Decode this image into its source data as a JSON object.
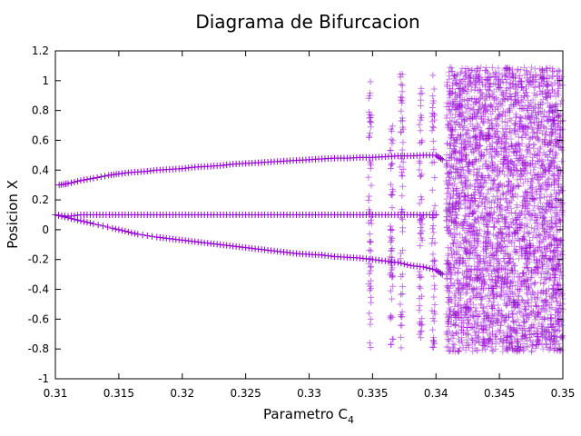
{
  "chart_data": {
    "type": "scatter",
    "title": "Diagrama de Bifurcacion",
    "xlabel": {
      "base": "Parametro C",
      "subscript": "4"
    },
    "ylabel": "Posicion X",
    "xlim": [
      0.31,
      0.35
    ],
    "ylim": [
      -1,
      1.2
    ],
    "xticks": [
      "0.31",
      "0.315",
      "0.32",
      "0.325",
      "0.33",
      "0.335",
      "0.34",
      "0.345",
      "0.35"
    ],
    "yticks": [
      "-1",
      "-0.8",
      "-0.6",
      "-0.4",
      "-0.2",
      "0",
      "0.2",
      "0.4",
      "0.6",
      "0.8",
      "1",
      "1.2"
    ],
    "marker": "+",
    "color": "#9400d3",
    "grid": false,
    "series": [
      {
        "branch": "upper",
        "points": [
          [
            0.3103,
            0.3
          ],
          [
            0.311,
            0.31
          ],
          [
            0.312,
            0.33
          ],
          [
            0.313,
            0.345
          ],
          [
            0.3142,
            0.365
          ],
          [
            0.315,
            0.375
          ],
          [
            0.316,
            0.385
          ],
          [
            0.317,
            0.39
          ],
          [
            0.318,
            0.4
          ],
          [
            0.319,
            0.405
          ],
          [
            0.32,
            0.41
          ],
          [
            0.321,
            0.42
          ],
          [
            0.322,
            0.425
          ],
          [
            0.323,
            0.43
          ],
          [
            0.324,
            0.44
          ],
          [
            0.325,
            0.445
          ],
          [
            0.326,
            0.45
          ],
          [
            0.327,
            0.455
          ],
          [
            0.328,
            0.46
          ],
          [
            0.329,
            0.465
          ],
          [
            0.33,
            0.47
          ],
          [
            0.331,
            0.475
          ],
          [
            0.332,
            0.48
          ],
          [
            0.333,
            0.48
          ],
          [
            0.334,
            0.485
          ],
          [
            0.335,
            0.485
          ],
          [
            0.336,
            0.49
          ],
          [
            0.337,
            0.495
          ],
          [
            0.338,
            0.495
          ],
          [
            0.339,
            0.5
          ],
          [
            0.34,
            0.5
          ],
          [
            0.3405,
            0.47
          ]
        ]
      },
      {
        "branch": "middle",
        "points": [
          [
            0.31,
            0.1
          ],
          [
            0.311,
            0.09
          ],
          [
            0.312,
            0.1
          ],
          [
            0.313,
            0.1
          ],
          [
            0.314,
            0.1
          ],
          [
            0.315,
            0.1
          ],
          [
            0.316,
            0.1
          ],
          [
            0.317,
            0.1
          ],
          [
            0.318,
            0.1
          ],
          [
            0.319,
            0.1
          ],
          [
            0.32,
            0.1
          ],
          [
            0.321,
            0.1
          ],
          [
            0.322,
            0.1
          ],
          [
            0.323,
            0.1
          ],
          [
            0.324,
            0.1
          ],
          [
            0.325,
            0.1
          ],
          [
            0.326,
            0.1
          ],
          [
            0.327,
            0.1
          ],
          [
            0.328,
            0.1
          ],
          [
            0.329,
            0.1
          ],
          [
            0.33,
            0.1
          ],
          [
            0.331,
            0.1
          ],
          [
            0.332,
            0.1
          ],
          [
            0.333,
            0.1
          ],
          [
            0.334,
            0.1
          ],
          [
            0.335,
            0.1
          ],
          [
            0.336,
            0.1
          ],
          [
            0.337,
            0.1
          ],
          [
            0.338,
            0.1
          ],
          [
            0.339,
            0.1
          ],
          [
            0.34,
            0.1
          ]
        ]
      },
      {
        "branch": "lower",
        "points": [
          [
            0.31,
            0.1
          ],
          [
            0.311,
            0.08
          ],
          [
            0.312,
            0.06
          ],
          [
            0.313,
            0.04
          ],
          [
            0.3145,
            0.01
          ],
          [
            0.3155,
            -0.01
          ],
          [
            0.3165,
            -0.03
          ],
          [
            0.318,
            -0.05
          ],
          [
            0.319,
            -0.06
          ],
          [
            0.32,
            -0.07
          ],
          [
            0.321,
            -0.08
          ],
          [
            0.322,
            -0.09
          ],
          [
            0.323,
            -0.1
          ],
          [
            0.324,
            -0.11
          ],
          [
            0.325,
            -0.12
          ],
          [
            0.326,
            -0.13
          ],
          [
            0.327,
            -0.14
          ],
          [
            0.328,
            -0.15
          ],
          [
            0.329,
            -0.16
          ],
          [
            0.33,
            -0.165
          ],
          [
            0.331,
            -0.17
          ],
          [
            0.332,
            -0.18
          ],
          [
            0.333,
            -0.185
          ],
          [
            0.334,
            -0.19
          ],
          [
            0.335,
            -0.2
          ],
          [
            0.336,
            -0.21
          ],
          [
            0.337,
            -0.22
          ],
          [
            0.338,
            -0.24
          ],
          [
            0.339,
            -0.25
          ],
          [
            0.34,
            -0.27
          ],
          [
            0.3405,
            -0.3
          ]
        ]
      }
    ],
    "vertical_scatter_bands": [
      {
        "x": 0.3348,
        "ymin": -0.8,
        "ymax": 1.0
      },
      {
        "x": 0.3365,
        "ymin": -0.78,
        "ymax": 0.7
      },
      {
        "x": 0.3373,
        "ymin": -0.8,
        "ymax": 1.06
      },
      {
        "x": 0.3388,
        "ymin": -0.78,
        "ymax": 0.98
      },
      {
        "x": 0.3398,
        "ymin": -0.8,
        "ymax": 1.08
      }
    ],
    "chaotic_region": {
      "xmin": 0.3408,
      "xmax": 0.35,
      "ymin": -0.82,
      "ymax": 1.09
    }
  }
}
